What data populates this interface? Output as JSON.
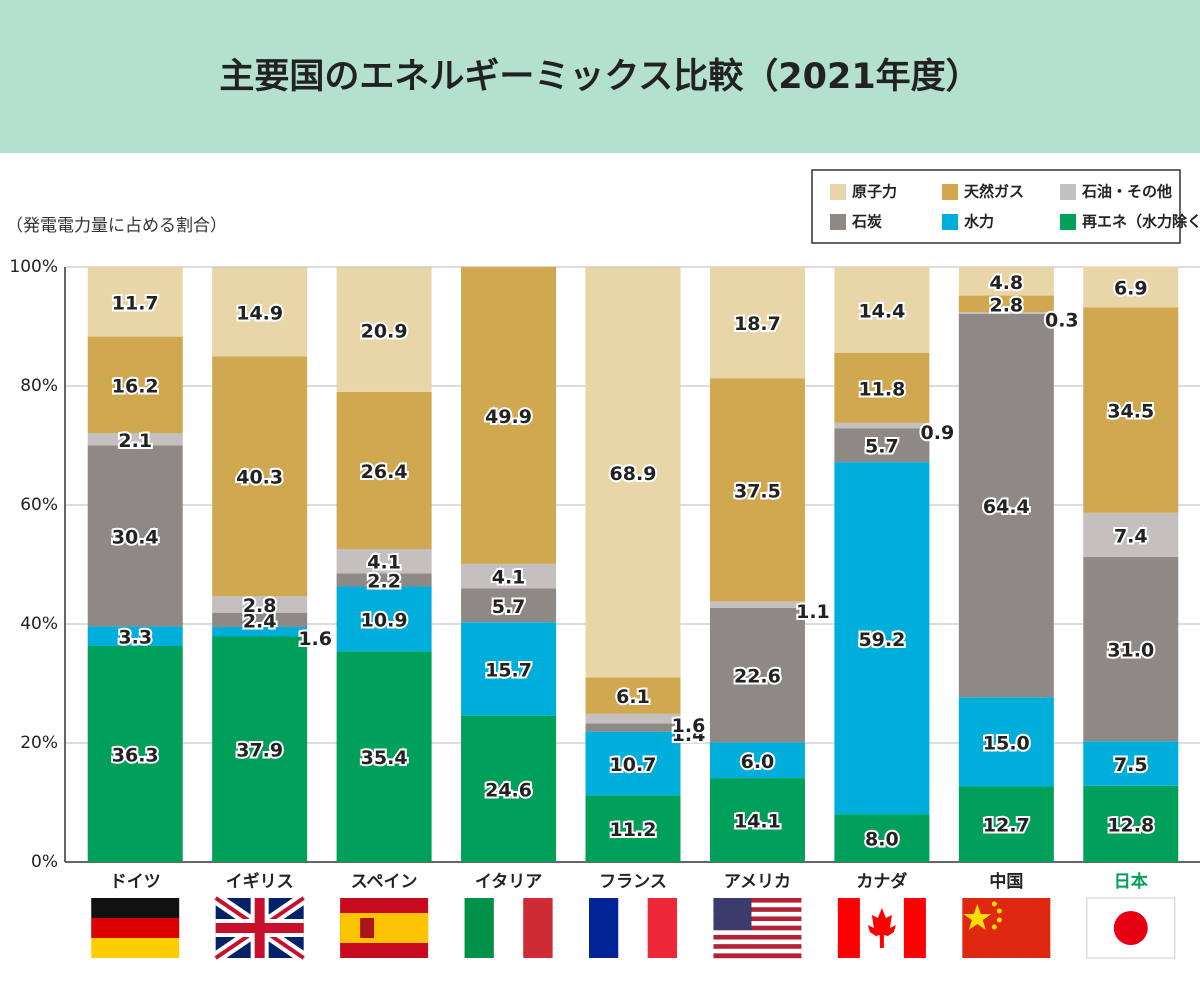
{
  "chart_data": {
    "type": "stacked-bar",
    "title": "主要国のエネルギーミックス比較（2021年度）",
    "subtitle": "（発電電力量に占める割合）",
    "categories": [
      "ドイツ",
      "イギリス",
      "スペイン",
      "イタリア",
      "フランス",
      "アメリカ",
      "カナダ",
      "中国",
      "日本"
    ],
    "highlight_category_color": "#00a05a",
    "series": [
      {
        "name": "再エネ（水力除く）",
        "color": "#00a05a",
        "values": [
          36.3,
          37.9,
          35.4,
          24.6,
          11.2,
          14.1,
          8.0,
          12.7,
          12.8
        ],
        "value_labels": [
          "36.3",
          "37.9",
          "35.4",
          "24.6",
          "11.2",
          "14.1",
          "8.0",
          "12.7",
          "12.8"
        ]
      },
      {
        "name": "水力",
        "color": "#00aedb",
        "values": [
          3.3,
          1.6,
          10.9,
          15.7,
          10.7,
          6.0,
          59.2,
          15.0,
          7.5
        ],
        "value_labels": [
          "3.3",
          "1.6",
          "10.9",
          "15.7",
          "10.7",
          "6.0",
          "59.2",
          "15.0",
          "7.5"
        ]
      },
      {
        "name": "石炭",
        "color": "#8f8985",
        "values": [
          30.4,
          2.4,
          2.2,
          5.7,
          1.4,
          22.6,
          5.7,
          64.4,
          31.0
        ],
        "value_labels": [
          "30.4",
          "2.4",
          "2.2",
          "5.7",
          "1.4",
          "22.6",
          "5.7",
          "64.4",
          "31.0"
        ]
      },
      {
        "name": "石油・その他",
        "color": "#c4c0bf",
        "values": [
          2.1,
          2.8,
          4.1,
          4.1,
          1.6,
          1.1,
          0.9,
          0.3,
          7.4
        ],
        "value_labels": [
          "2.1",
          "2.8",
          "4.1",
          "4.1",
          "1.6",
          "1.1",
          "0.9",
          "0.3",
          "7.4"
        ]
      },
      {
        "name": "天然ガス",
        "color": "#cfa850",
        "values": [
          16.2,
          40.3,
          26.4,
          49.9,
          6.1,
          37.5,
          11.8,
          2.8,
          34.5
        ],
        "value_labels": [
          "16.2",
          "40.3",
          "26.4",
          "49.9",
          "6.1",
          "37.5",
          "11.8",
          "2.8",
          "34.5"
        ]
      },
      {
        "name": "原子力",
        "color": "#e8d5a8",
        "values": [
          11.7,
          14.9,
          20.9,
          null,
          68.9,
          18.7,
          14.4,
          4.8,
          6.9
        ],
        "value_labels": [
          "11.7",
          "14.9",
          "20.9",
          null,
          "68.9",
          "18.7",
          "14.4",
          "4.8",
          "6.9"
        ]
      }
    ],
    "legend_order": [
      5,
      4,
      3,
      2,
      1,
      0
    ],
    "ylim": [
      0,
      100
    ],
    "yticks": [
      {
        "value": 0,
        "label": "0%"
      },
      {
        "value": 20,
        "label": "20%"
      },
      {
        "value": 40,
        "label": "40%"
      },
      {
        "value": 60,
        "label": "60%"
      },
      {
        "value": 80,
        "label": "80%"
      },
      {
        "value": 100,
        "label": "100%"
      }
    ],
    "grid": true
  }
}
